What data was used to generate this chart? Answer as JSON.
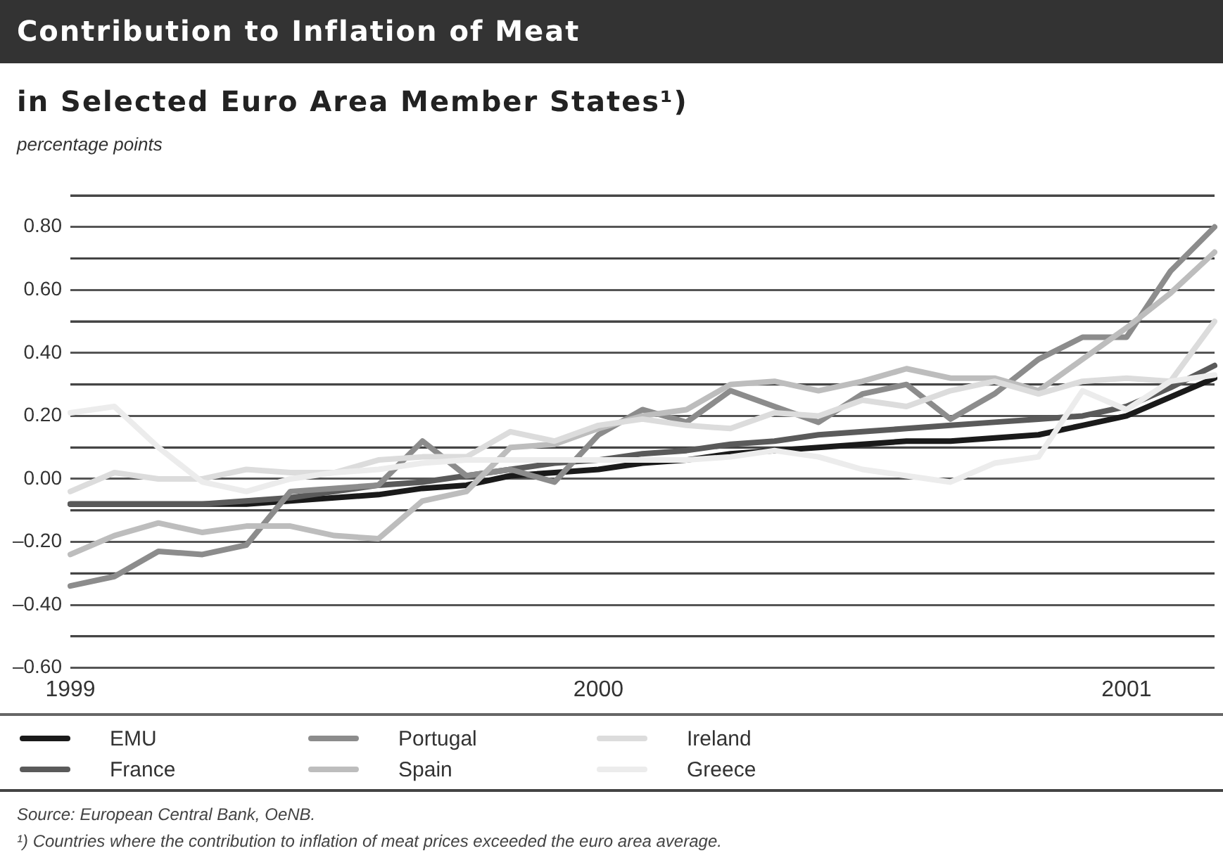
{
  "chart_data": {
    "type": "line",
    "title": "Contribution to Inflation of Meat",
    "subtitle": "in Selected Euro Area Member States¹)",
    "ylabel": "percentage points",
    "categories": [
      "1999",
      null,
      null,
      null,
      null,
      null,
      null,
      null,
      null,
      null,
      null,
      null,
      "2000",
      null,
      null,
      null,
      null,
      null,
      null,
      null,
      null,
      null,
      null,
      null,
      "2001",
      null,
      null
    ],
    "series": [
      {
        "name": "EMU",
        "color": "#1a1a1a",
        "values": [
          -0.08,
          -0.08,
          -0.08,
          -0.08,
          -0.08,
          -0.07,
          -0.06,
          -0.05,
          -0.03,
          -0.02,
          0.01,
          0.02,
          0.03,
          0.05,
          0.06,
          0.08,
          0.09,
          0.1,
          0.11,
          0.12,
          0.12,
          0.13,
          0.14,
          0.17,
          0.2,
          0.26,
          0.32
        ]
      },
      {
        "name": "France",
        "color": "#5a5a5a",
        "values": [
          -0.08,
          -0.08,
          -0.08,
          -0.08,
          -0.07,
          -0.06,
          -0.04,
          -0.02,
          -0.01,
          0.01,
          0.03,
          0.05,
          0.06,
          0.08,
          0.09,
          0.11,
          0.12,
          0.14,
          0.15,
          0.16,
          0.17,
          0.18,
          0.19,
          0.2,
          0.23,
          0.29,
          0.36
        ]
      },
      {
        "name": "Portugal",
        "color": "#8c8c8c",
        "values": [
          -0.34,
          -0.31,
          -0.23,
          -0.24,
          -0.21,
          -0.04,
          -0.03,
          -0.02,
          0.12,
          0.01,
          0.03,
          -0.01,
          0.14,
          0.22,
          0.18,
          0.28,
          0.23,
          0.18,
          0.27,
          0.3,
          0.19,
          0.27,
          0.38,
          0.45,
          0.45,
          0.66,
          0.8
        ]
      },
      {
        "name": "Spain",
        "color": "#bdbdbd",
        "values": [
          -0.24,
          -0.18,
          -0.14,
          -0.17,
          -0.15,
          -0.15,
          -0.18,
          -0.19,
          -0.07,
          -0.04,
          0.1,
          0.11,
          0.16,
          0.2,
          0.22,
          0.3,
          0.31,
          0.28,
          0.31,
          0.35,
          0.32,
          0.32,
          0.28,
          0.38,
          0.48,
          0.59,
          0.72
        ]
      },
      {
        "name": "Ireland",
        "color": "#dcdcdc",
        "values": [
          -0.04,
          0.02,
          0.0,
          0.0,
          0.03,
          0.02,
          0.02,
          0.06,
          0.07,
          0.07,
          0.15,
          0.12,
          0.17,
          0.19,
          0.17,
          0.16,
          0.21,
          0.2,
          0.25,
          0.23,
          0.28,
          0.31,
          0.27,
          0.31,
          0.32,
          0.31,
          0.5
        ]
      },
      {
        "name": "Greece",
        "color": "#ececec",
        "values": [
          0.21,
          0.23,
          0.1,
          -0.01,
          -0.04,
          0.0,
          0.02,
          0.03,
          0.05,
          0.06,
          0.06,
          0.06,
          0.06,
          0.06,
          0.06,
          0.07,
          0.09,
          0.07,
          0.03,
          0.01,
          -0.01,
          0.05,
          0.07,
          0.28,
          0.22,
          0.31,
          0.33
        ]
      }
    ],
    "ylim": [
      -0.6,
      0.9
    ],
    "yticks": [
      {
        "value": -0.6,
        "label": "–0.60"
      },
      {
        "value": -0.5,
        "label": null
      },
      {
        "value": -0.4,
        "label": "–0.40"
      },
      {
        "value": -0.3,
        "label": null
      },
      {
        "value": -0.2,
        "label": "–0.20"
      },
      {
        "value": -0.1,
        "label": null
      },
      {
        "value": 0,
        "label": "0.00"
      },
      {
        "value": 0.1,
        "label": null
      },
      {
        "value": 0.2,
        "label": "0.20"
      },
      {
        "value": 0.3,
        "label": null
      },
      {
        "value": 0.4,
        "label": "0.40"
      },
      {
        "value": 0.5,
        "label": null
      },
      {
        "value": 0.6,
        "label": "0.60"
      },
      {
        "value": 0.7,
        "label": null
      },
      {
        "value": 0.8,
        "label": "0.80"
      },
      {
        "value": 0.9,
        "label": null
      }
    ],
    "grid": "y",
    "legend": "bottom",
    "marker": "none",
    "line_style": "solid",
    "annotations": [
      "Source: European Central Bank, OeNB.",
      "¹) Countries where the contribution to inflation of meat prices exceeded the euro area average."
    ]
  }
}
